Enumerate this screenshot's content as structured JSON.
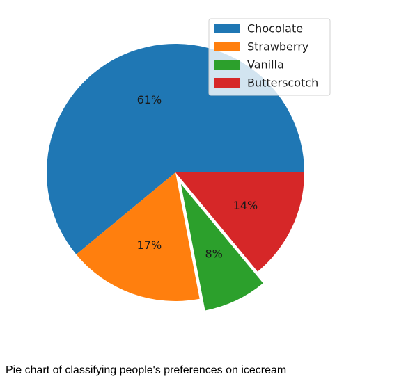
{
  "caption": "Pie chart of classifying people's preferences on icecream",
  "chart_data": {
    "type": "pie",
    "categories": [
      "Chocolate",
      "Strawberry",
      "Vanilla",
      "Butterscotch"
    ],
    "values": [
      61,
      17,
      8,
      14
    ],
    "labels": [
      "61%",
      "17%",
      "8%",
      "14%"
    ],
    "colors": [
      "#1f77b4",
      "#ff7f0e",
      "#2ca02c",
      "#d62728"
    ],
    "explode": [
      0,
      0,
      0.1,
      0
    ],
    "start_angle_deg": 0,
    "direction": "counterclockwise",
    "legend_placement": "upper right",
    "title": ""
  }
}
